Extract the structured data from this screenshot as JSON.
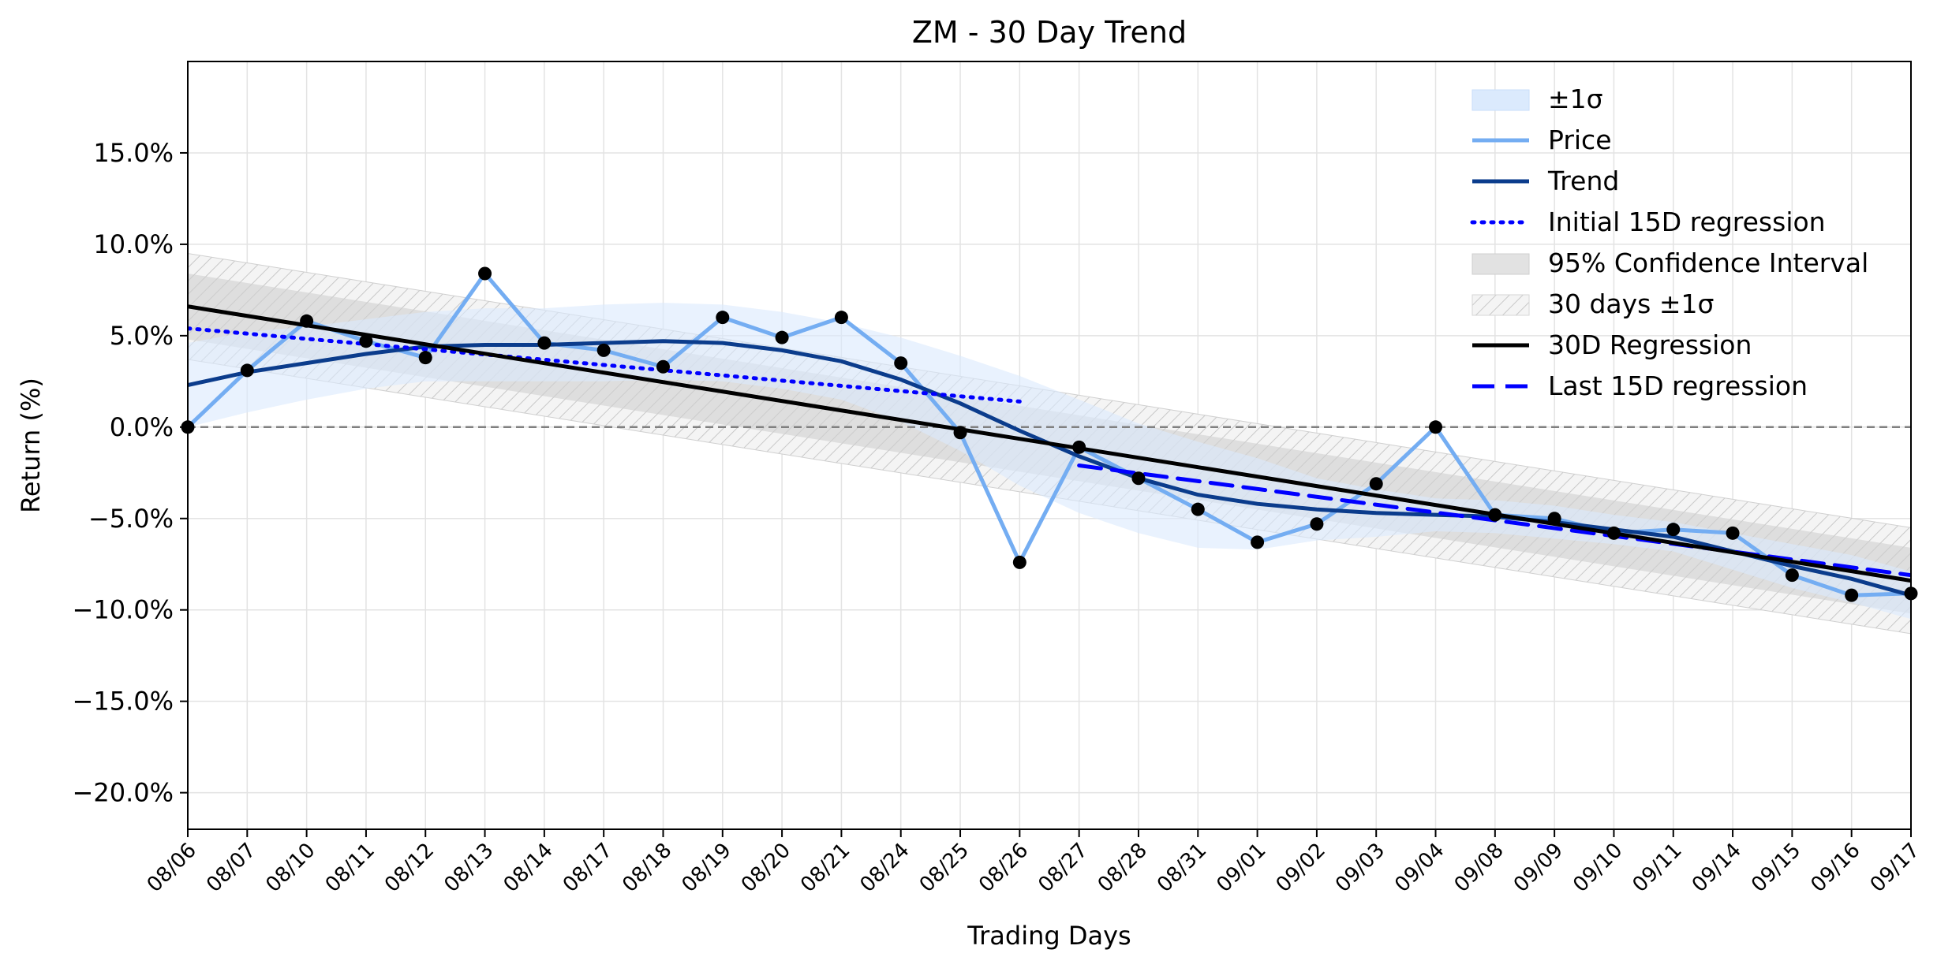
{
  "chart_data": {
    "type": "line",
    "title": "ZM - 30 Day Trend",
    "xlabel": "Trading Days",
    "ylabel": "Return (%)",
    "categories": [
      "08/06",
      "08/07",
      "08/10",
      "08/11",
      "08/12",
      "08/13",
      "08/14",
      "08/17",
      "08/18",
      "08/19",
      "08/20",
      "08/21",
      "08/24",
      "08/25",
      "08/26",
      "08/27",
      "08/28",
      "08/31",
      "09/01",
      "09/02",
      "09/03",
      "09/04",
      "09/08",
      "09/09",
      "09/10",
      "09/11",
      "09/14",
      "09/15",
      "09/16",
      "09/17"
    ],
    "ylim": [
      -22,
      20
    ],
    "yticks": [
      -20,
      -15,
      -10,
      -5,
      0,
      5,
      10,
      15
    ],
    "ytick_labels": [
      "−20.0%",
      "−15.0%",
      "−10.0%",
      "−5.0%",
      "0.0%",
      "5.0%",
      "10.0%",
      "15.0%"
    ],
    "grid": true,
    "legend_position": "top-right",
    "series": [
      {
        "name": "Price",
        "color": "#74adf2",
        "values": [
          0.0,
          3.1,
          5.8,
          4.7,
          3.8,
          8.4,
          4.6,
          4.2,
          3.3,
          6.0,
          4.9,
          6.0,
          3.5,
          -0.3,
          -7.4,
          -1.1,
          -2.8,
          -4.5,
          -6.3,
          -5.3,
          -3.1,
          0.0,
          -4.8,
          -5.0,
          -5.8,
          -5.6,
          -5.8,
          -8.1,
          -9.2,
          -9.1
        ]
      },
      {
        "name": "Trend",
        "color": "#0b3c8c",
        "values": [
          2.3,
          3.0,
          3.5,
          4.0,
          4.4,
          4.5,
          4.5,
          4.6,
          4.7,
          4.6,
          4.2,
          3.6,
          2.6,
          1.3,
          -0.2,
          -1.6,
          -2.8,
          -3.7,
          -4.2,
          -4.5,
          -4.7,
          -4.8,
          -4.9,
          -5.2,
          -5.6,
          -6.0,
          -6.8,
          -7.6,
          -8.3,
          -9.2
        ]
      },
      {
        "name": "Initial 15D regression",
        "color": "#0000ff",
        "style": "dotted",
        "x_range": [
          "08/06",
          "08/26"
        ],
        "start": 5.4,
        "end": 1.4
      },
      {
        "name": "30D Regression",
        "color": "#000000",
        "start": 6.6,
        "end": -8.4
      },
      {
        "name": "Last 15D regression",
        "color": "#0000ff",
        "style": "dashed",
        "x_range": [
          "08/27",
          "09/17"
        ],
        "start": -2.1,
        "end": -8.1
      }
    ],
    "bands": [
      {
        "name": "±1σ",
        "color": "#dbeafd",
        "around": "Trend",
        "halfwidth": [
          2.3,
          2.2,
          2.0,
          1.9,
          1.9,
          2.0,
          2.0,
          2.1,
          2.1,
          2.1,
          2.1,
          2.1,
          2.3,
          2.6,
          3.0,
          3.1,
          3.0,
          2.9,
          2.5,
          1.7,
          1.3,
          0.9,
          0.9,
          0.9,
          0.8,
          0.8,
          1.0,
          1.2,
          1.3,
          1.3
        ]
      },
      {
        "name": "95% Confidence Interval",
        "color": "#cfcfcf",
        "around": "30D Regression",
        "halfwidth": 1.8
      },
      {
        "name": "30 days ±1σ",
        "color": "#e8e8e8",
        "style": "hatched",
        "around": "30D Regression",
        "halfwidth": 2.9
      }
    ],
    "reference_line": {
      "y": 0,
      "style": "dashed",
      "color": "#808080"
    },
    "legend": [
      "±1σ",
      "Price",
      "Trend",
      "Initial 15D regression",
      "95% Confidence Interval",
      "30 days ±1σ",
      "30D Regression",
      "Last 15D regression"
    ]
  }
}
